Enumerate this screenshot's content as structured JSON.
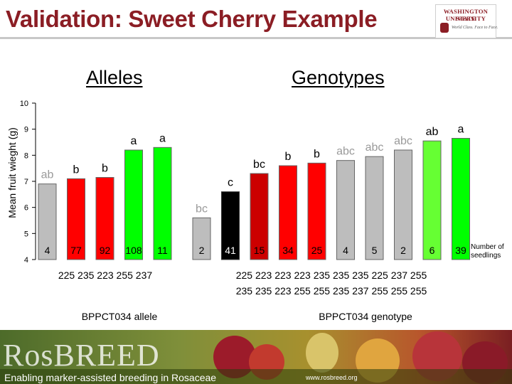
{
  "slide": {
    "title": "Validation: Sweet Cherry Example",
    "logo": {
      "line1": "WASHINGTON STATE",
      "line2": "UNIVERSITY",
      "tagline": "World Class. Face to Face."
    }
  },
  "sections": {
    "alleles": "Alleles",
    "genotypes": "Genotypes"
  },
  "footer": {
    "brand": "RosBREED",
    "tagline": "Enabling marker-assisted breeding in Rosaceae",
    "url": "www.rosbreed.org"
  },
  "chart_data": {
    "type": "bar",
    "ylabel": "Mean fruit wieght (g)",
    "ylim": [
      4,
      10
    ],
    "yticks": [
      "4",
      "5",
      "6",
      "7",
      "8",
      "9",
      "10"
    ],
    "count_label": "Number of seedlings",
    "groups": [
      {
        "name": "BPPCT034 allele",
        "row1": "225 235 223 255 237",
        "row2": ""
      },
      {
        "name": "BPPCT034 genotype",
        "row1": "225 223 223 223 235 235 235 225 237 255",
        "row2": "235 235 223 255 255 235 237 255 255 255"
      }
    ],
    "bars": [
      {
        "group": 0,
        "value": 6.9,
        "letter": "ab",
        "count": "4",
        "color": "#bdbdbd"
      },
      {
        "group": 0,
        "value": 7.1,
        "letter": "b",
        "count": "77",
        "color": "#ff0000"
      },
      {
        "group": 0,
        "value": 7.15,
        "letter": "b",
        "count": "92",
        "color": "#ff0000"
      },
      {
        "group": 0,
        "value": 8.2,
        "letter": "a",
        "count": "108",
        "color": "#00ff00"
      },
      {
        "group": 0,
        "value": 8.3,
        "letter": "a",
        "count": "11",
        "color": "#00ff00"
      },
      {
        "group": 1,
        "value": 5.6,
        "letter": "bc",
        "count": "2",
        "color": "#bdbdbd"
      },
      {
        "group": 1,
        "value": 6.6,
        "letter": "c",
        "count": "41",
        "color": "#000000"
      },
      {
        "group": 1,
        "value": 7.3,
        "letter": "bc",
        "count": "15",
        "color": "#cc0000"
      },
      {
        "group": 1,
        "value": 7.6,
        "letter": "b",
        "count": "34",
        "color": "#ff0000"
      },
      {
        "group": 1,
        "value": 7.7,
        "letter": "b",
        "count": "25",
        "color": "#ff0000"
      },
      {
        "group": 1,
        "value": 7.8,
        "letter": "abc",
        "count": "4",
        "color": "#bdbdbd"
      },
      {
        "group": 1,
        "value": 7.95,
        "letter": "abc",
        "count": "5",
        "color": "#bdbdbd"
      },
      {
        "group": 1,
        "value": 8.2,
        "letter": "abc",
        "count": "2",
        "color": "#bdbdbd"
      },
      {
        "group": 1,
        "value": 8.55,
        "letter": "ab",
        "count": "6",
        "color": "#66ff33"
      },
      {
        "group": 1,
        "value": 8.65,
        "letter": "a",
        "count": "39",
        "color": "#00ff00"
      }
    ],
    "grid": false,
    "legend": "none"
  }
}
